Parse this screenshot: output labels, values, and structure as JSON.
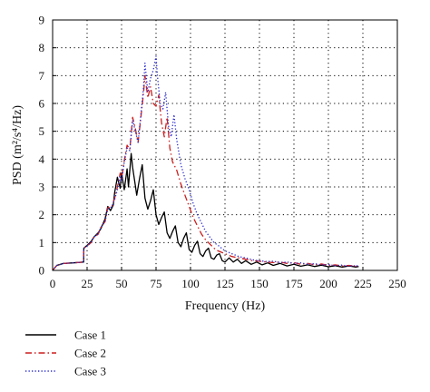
{
  "chart_data": {
    "type": "line",
    "title": "",
    "xlabel": "Frequency (Hz)",
    "ylabel": "PSD (m²/s⁴/Hz)",
    "xlim": [
      0,
      250
    ],
    "ylim": [
      0,
      9
    ],
    "xticks": [
      "0",
      "25",
      "50",
      "75",
      "100",
      "125",
      "150",
      "175",
      "200",
      "225",
      "250"
    ],
    "yticks": [
      "0",
      "1",
      "2",
      "3",
      "4",
      "5",
      "6",
      "7",
      "8",
      "9"
    ],
    "grid": true,
    "grid_style": "dotted",
    "legend_position": "bottom-left, below plot",
    "series": [
      {
        "name": "Case 1",
        "color": "#000000",
        "style": "solid",
        "x": [
          0,
          3,
          8,
          15,
          22.5,
          22.6,
          25,
          28,
          30,
          33,
          35,
          38,
          40,
          42,
          44,
          45,
          47,
          49,
          50,
          52,
          54,
          55,
          57,
          58,
          60,
          61,
          63,
          65,
          67,
          69,
          71,
          73,
          75,
          77,
          79,
          81,
          83,
          85,
          87,
          89,
          91,
          93,
          95,
          97,
          99,
          101,
          103,
          105,
          107,
          109,
          111,
          113,
          115,
          117,
          119,
          121,
          123,
          125,
          128,
          131,
          134,
          137,
          140,
          144,
          148,
          152,
          156,
          160,
          165,
          170,
          175,
          180,
          185,
          190,
          195,
          200,
          205,
          210,
          215,
          220,
          222
        ],
        "y": [
          0,
          0.18,
          0.25,
          0.27,
          0.3,
          0.8,
          0.9,
          1.05,
          1.2,
          1.35,
          1.5,
          1.85,
          2.3,
          2.15,
          2.35,
          2.8,
          3.35,
          2.95,
          3.5,
          2.9,
          3.65,
          3.0,
          4.2,
          3.7,
          3.05,
          2.7,
          3.3,
          3.8,
          2.6,
          2.2,
          2.5,
          2.9,
          2.0,
          1.65,
          1.9,
          2.1,
          1.35,
          1.15,
          1.4,
          1.6,
          1.0,
          0.85,
          1.15,
          1.35,
          0.75,
          0.65,
          0.9,
          1.05,
          0.6,
          0.5,
          0.7,
          0.8,
          0.45,
          0.4,
          0.55,
          0.6,
          0.35,
          0.3,
          0.45,
          0.3,
          0.4,
          0.25,
          0.35,
          0.22,
          0.3,
          0.2,
          0.27,
          0.18,
          0.25,
          0.16,
          0.22,
          0.15,
          0.2,
          0.14,
          0.19,
          0.13,
          0.17,
          0.12,
          0.16,
          0.12,
          0.14
        ]
      },
      {
        "name": "Case 2",
        "color": "#cc1f1f",
        "style": "dashdot",
        "x": [
          0,
          3,
          8,
          15,
          22.5,
          22.6,
          25,
          28,
          30,
          33,
          35,
          38,
          40,
          43,
          45,
          47,
          49,
          50,
          52,
          54,
          56,
          58,
          60,
          62,
          64,
          66,
          67,
          69,
          71,
          73,
          75,
          77,
          79,
          81,
          83,
          85,
          87,
          90,
          93,
          96,
          99,
          102,
          105,
          108,
          111,
          114,
          117,
          120,
          125,
          130,
          135,
          140,
          145,
          150,
          155,
          160,
          165,
          170,
          175,
          180,
          185,
          190,
          195,
          200,
          205,
          210,
          215,
          220,
          222
        ],
        "y": [
          0,
          0.18,
          0.25,
          0.27,
          0.3,
          0.8,
          0.88,
          1.0,
          1.2,
          1.3,
          1.55,
          1.75,
          2.25,
          2.3,
          2.6,
          3.0,
          3.5,
          3.3,
          3.95,
          4.5,
          4.35,
          5.5,
          5.1,
          4.6,
          5.5,
          6.4,
          7.0,
          6.2,
          6.6,
          6.0,
          5.9,
          6.3,
          5.3,
          4.8,
          5.5,
          4.4,
          3.9,
          3.6,
          3.1,
          2.7,
          2.3,
          1.9,
          1.6,
          1.3,
          1.1,
          0.95,
          0.8,
          0.7,
          0.6,
          0.5,
          0.45,
          0.4,
          0.35,
          0.33,
          0.3,
          0.28,
          0.3,
          0.25,
          0.28,
          0.22,
          0.25,
          0.2,
          0.23,
          0.18,
          0.2,
          0.16,
          0.18,
          0.15,
          0.16
        ]
      },
      {
        "name": "Case 3",
        "color": "#2b2bd0",
        "style": "dotted",
        "x": [
          0,
          3,
          8,
          15,
          22.5,
          22.6,
          25,
          28,
          30,
          33,
          35,
          38,
          40,
          43,
          45,
          47,
          49,
          50,
          52,
          54,
          56,
          58,
          60,
          62,
          64,
          66,
          67,
          69,
          71,
          73,
          75,
          76,
          78,
          80,
          82,
          84,
          86,
          88,
          90,
          93,
          96,
          99,
          102,
          105,
          108,
          111,
          114,
          117,
          120,
          125,
          130,
          135,
          140,
          145,
          150,
          155,
          160,
          165,
          170,
          175,
          180,
          185,
          190,
          195,
          200,
          205,
          210,
          215,
          220,
          222
        ],
        "y": [
          0,
          0.18,
          0.25,
          0.27,
          0.3,
          0.8,
          0.88,
          1.0,
          1.2,
          1.3,
          1.55,
          1.75,
          2.2,
          2.3,
          2.55,
          2.9,
          3.4,
          3.2,
          3.9,
          4.4,
          4.3,
          5.4,
          5.0,
          4.6,
          5.6,
          6.6,
          7.45,
          6.4,
          6.9,
          7.2,
          7.7,
          7.0,
          6.0,
          5.8,
          6.4,
          5.2,
          4.8,
          5.6,
          4.7,
          3.8,
          3.3,
          2.9,
          2.4,
          2.0,
          1.7,
          1.4,
          1.2,
          1.0,
          0.9,
          0.7,
          0.6,
          0.5,
          0.45,
          0.38,
          0.35,
          0.32,
          0.33,
          0.28,
          0.3,
          0.25,
          0.27,
          0.22,
          0.24,
          0.2,
          0.21,
          0.17,
          0.19,
          0.15,
          0.17,
          0.16
        ]
      }
    ]
  }
}
